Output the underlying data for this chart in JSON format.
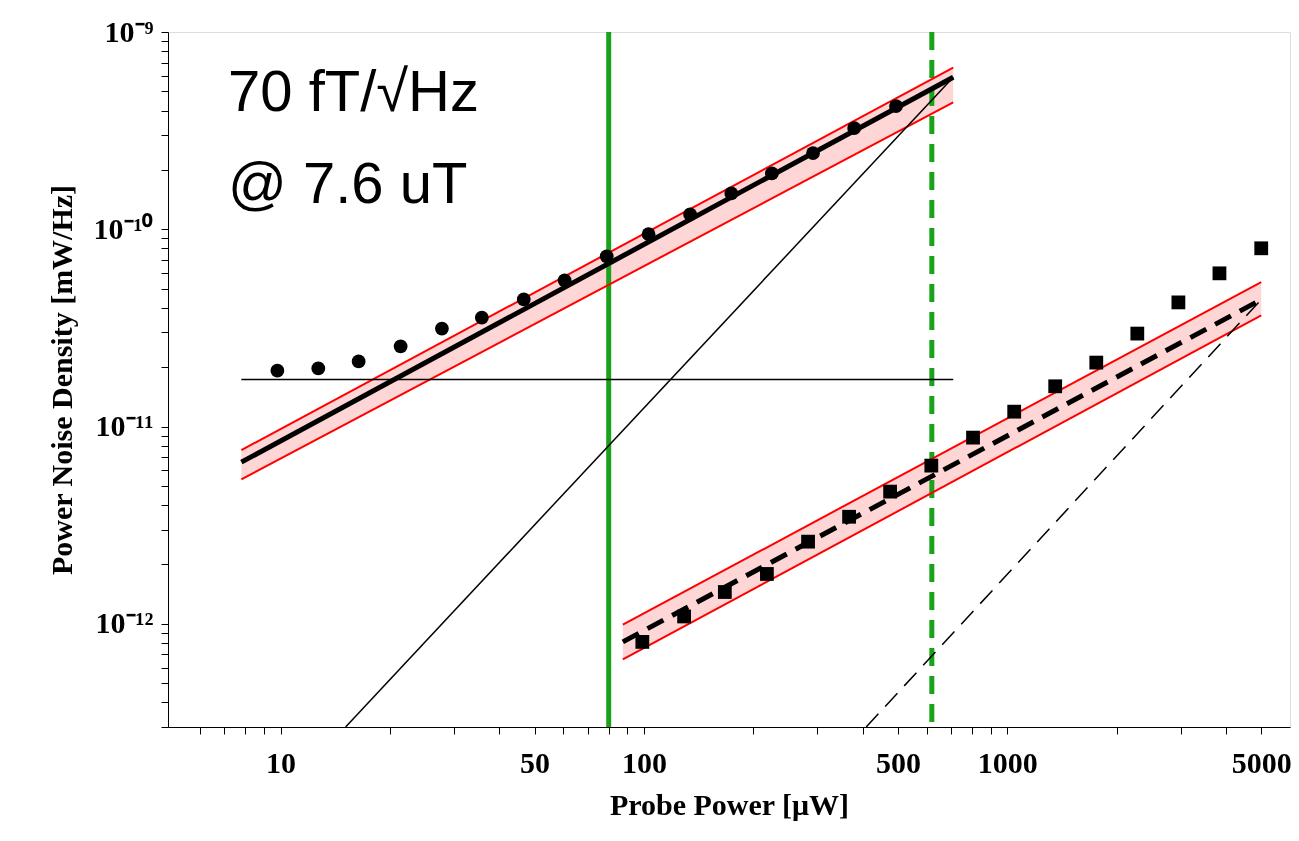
{
  "chart_data": {
    "type": "scatter",
    "xlabel": "Probe Power [μW]",
    "ylabel": "Power Noise Density [mW/Hz]",
    "log": "xy",
    "grid": false,
    "xlim": [
      4.9,
      6000
    ],
    "ylim": [
      3e-13,
      1e-09
    ],
    "xticks": [
      {
        "value": 6,
        "label": null
      },
      {
        "value": 7,
        "label": null
      },
      {
        "value": 8,
        "label": null
      },
      {
        "value": 9,
        "label": null
      },
      10,
      {
        "value": 20,
        "label": null
      },
      {
        "value": 30,
        "label": null
      },
      {
        "value": 40,
        "label": null
      },
      50,
      {
        "value": 60,
        "label": null
      },
      {
        "value": 70,
        "label": null
      },
      {
        "value": 80,
        "label": null
      },
      {
        "value": 90,
        "label": null
      },
      100,
      {
        "value": 200,
        "label": null
      },
      {
        "value": 300,
        "label": null
      },
      {
        "value": 400,
        "label": null
      },
      500,
      {
        "value": 600,
        "label": null
      },
      {
        "value": 700,
        "label": null
      },
      {
        "value": 800,
        "label": null
      },
      {
        "value": 900,
        "label": null
      },
      1000,
      {
        "value": 2000,
        "label": null
      },
      {
        "value": 3000,
        "label": null
      },
      {
        "value": 4000,
        "label": null
      },
      5000
    ],
    "yticks": [
      {
        "value": 3e-13,
        "label": null
      },
      {
        "value": 4e-13,
        "label": null
      },
      {
        "value": 5e-13,
        "label": null
      },
      {
        "value": 6e-13,
        "label": null
      },
      {
        "value": 7e-13,
        "label": null
      },
      {
        "value": 8e-13,
        "label": null
      },
      {
        "value": 9e-13,
        "label": null
      },
      {
        "value": 1e-12,
        "label": "10⁻¹²"
      },
      {
        "value": 2e-12,
        "label": null
      },
      {
        "value": 3e-12,
        "label": null
      },
      {
        "value": 4e-12,
        "label": null
      },
      {
        "value": 5e-12,
        "label": null
      },
      {
        "value": 6e-12,
        "label": null
      },
      {
        "value": 7e-12,
        "label": null
      },
      {
        "value": 8e-12,
        "label": null
      },
      {
        "value": 9e-12,
        "label": null
      },
      {
        "value": 1e-11,
        "label": "10⁻¹¹"
      },
      {
        "value": 2e-11,
        "label": null
      },
      {
        "value": 3e-11,
        "label": null
      },
      {
        "value": 4e-11,
        "label": null
      },
      {
        "value": 5e-11,
        "label": null
      },
      {
        "value": 6e-11,
        "label": null
      },
      {
        "value": 7e-11,
        "label": null
      },
      {
        "value": 8e-11,
        "label": null
      },
      {
        "value": 9e-11,
        "label": null
      },
      {
        "value": 1e-10,
        "label": "10⁻¹⁰"
      },
      {
        "value": 2e-10,
        "label": null
      },
      {
        "value": 3e-10,
        "label": null
      },
      {
        "value": 4e-10,
        "label": null
      },
      {
        "value": 5e-10,
        "label": null
      },
      {
        "value": 6e-10,
        "label": null
      },
      {
        "value": 7e-10,
        "label": null
      },
      {
        "value": 8e-10,
        "label": null
      },
      {
        "value": 9e-10,
        "label": null
      },
      {
        "value": 1e-09,
        "label": "10⁻⁹"
      }
    ],
    "annotations": [
      "70 fT/√Hz",
      "@ 7.6 uT"
    ],
    "ref_lines": [
      {
        "axis": "x",
        "value": 80,
        "color": "#1aa31a",
        "line_style": "solid"
      },
      {
        "axis": "x",
        "value": 620,
        "color": "#1aa31a",
        "line_style": "dashed"
      }
    ],
    "series": [
      {
        "type": "line",
        "color": "#000000",
        "line_style": "solid",
        "marker": "none",
        "x": [
          7.8,
          710
        ],
        "values": [
          6.6e-12,
          5.9e-10
        ],
        "lower": [
          5.4e-12,
          4.4e-10
        ],
        "upper": [
          7.6e-12,
          6.6e-10
        ]
      },
      {
        "type": "line",
        "color": "#000000",
        "line_style": "dashed",
        "marker": "none",
        "x": [
          87.5,
          5000
        ],
        "values": [
          8.1e-13,
          4.4e-11
        ],
        "lower": [
          6.6e-13,
          3.66e-11
        ],
        "upper": [
          9.9e-13,
          5.4e-11
        ]
      },
      {
        "type": "line",
        "color": "#ff0000",
        "line_style": "solid",
        "marker": "none",
        "x": [
          7.8,
          710
        ],
        "values": [
          5.4e-12,
          4.4e-10
        ]
      },
      {
        "type": "line",
        "color": "#ff0000",
        "line_style": "solid",
        "marker": "none",
        "x": [
          7.8,
          710
        ],
        "values": [
          7.6e-12,
          6.6e-10
        ]
      },
      {
        "type": "line",
        "color": "#ff0000",
        "line_style": "solid",
        "marker": "none",
        "x": [
          87.5,
          5000
        ],
        "values": [
          6.6e-13,
          3.66e-11
        ]
      },
      {
        "type": "line",
        "color": "#ff0000",
        "line_style": "solid",
        "marker": "none",
        "x": [
          87.5,
          5000
        ],
        "values": [
          9.9e-13,
          5.4e-11
        ]
      },
      {
        "type": "line",
        "color": "#000000",
        "line_style": "solid",
        "marker": "none",
        "x": [
          7.8,
          710
        ],
        "values": [
          1.73e-11,
          1.73e-11
        ]
      },
      {
        "type": "line",
        "color": "#000000",
        "line_style": "solid",
        "marker": "none",
        "x": [
          15.1,
          710
        ],
        "values": [
          3e-13,
          5.9e-10
        ]
      },
      {
        "type": "line",
        "color": "#000000",
        "line_style": "dashed",
        "marker": "none",
        "x": [
          409,
          5000
        ],
        "values": [
          3e-13,
          4.4e-11
        ]
      },
      {
        "color": "#000000",
        "marker": "circle",
        "x": [
          9.8,
          12.7,
          16.4,
          21.4,
          27.8,
          35.8,
          46.7,
          60.5,
          79,
          103,
          134,
          174,
          225,
          292,
          379,
          494
        ],
        "values": [
          1.92e-11,
          1.97e-11,
          2.14e-11,
          2.55e-11,
          3.14e-11,
          3.57e-11,
          4.41e-11,
          5.51e-11,
          7.29e-11,
          9.44e-11,
          1.19e-10,
          1.52e-10,
          1.92e-10,
          2.43e-10,
          3.26e-10,
          4.21e-10
        ]
      },
      {
        "color": "#000000",
        "marker": "square",
        "x": [
          99,
          129,
          167,
          218,
          283,
          367,
          476,
          618,
          805,
          1045,
          1355,
          1758,
          2280,
          2958,
          3837,
          5000
        ],
        "values": [
          8.1e-13,
          1.09e-12,
          1.45e-12,
          1.79e-12,
          2.61e-12,
          3.49e-12,
          4.68e-12,
          6.34e-12,
          8.79e-12,
          1.19e-11,
          1.6e-11,
          2.11e-11,
          2.96e-11,
          4.26e-11,
          5.98e-11,
          8.01e-11
        ]
      }
    ]
  }
}
